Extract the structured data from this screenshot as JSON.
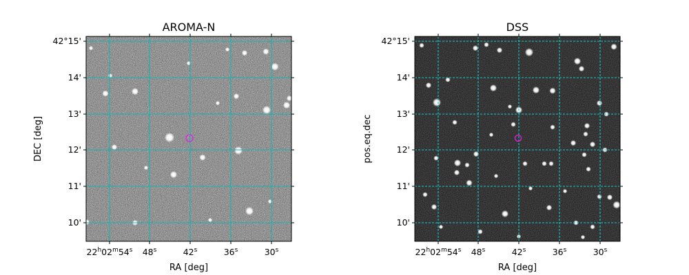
{
  "panels": [
    {
      "title": "AROMA-N",
      "xlabel": "RA [deg]",
      "ylabel": "DEC [deg]",
      "x_ticks": [
        {
          "main": "22",
          "sup1": "h",
          "mid": "02",
          "sup2": "m",
          "tail": "54",
          "sup3": "s"
        },
        {
          "main": "48",
          "sup1": "s"
        },
        {
          "main": "42",
          "sup1": "s"
        },
        {
          "main": "36",
          "sup1": "s"
        },
        {
          "main": "30",
          "sup1": "s"
        }
      ],
      "y_ticks": [
        "42°15'",
        "14'",
        "13'",
        "12'",
        "11'",
        "10'"
      ],
      "grid_color": "#19b3b3",
      "grid_style": "solid",
      "image_style": "noisy-gray",
      "marker_color": "#e61ee6"
    },
    {
      "title": "DSS",
      "xlabel": "RA [deg]",
      "ylabel": "pos.eq.dec",
      "x_ticks": [
        {
          "main": "22",
          "sup1": "h",
          "mid": "02",
          "sup2": "m",
          "tail": "54",
          "sup3": "s"
        },
        {
          "main": "48",
          "sup1": "s"
        },
        {
          "main": "42",
          "sup1": "s"
        },
        {
          "main": "36",
          "sup1": "s"
        },
        {
          "main": "30",
          "sup1": "s"
        }
      ],
      "y_ticks": [
        "42°15'",
        "14'",
        "13'",
        "12'",
        "11'",
        "10'"
      ],
      "grid_color": "#19c8c8",
      "grid_style": "dashed",
      "image_style": "dark-starfield",
      "marker_color": "#e61ee6"
    }
  ]
}
